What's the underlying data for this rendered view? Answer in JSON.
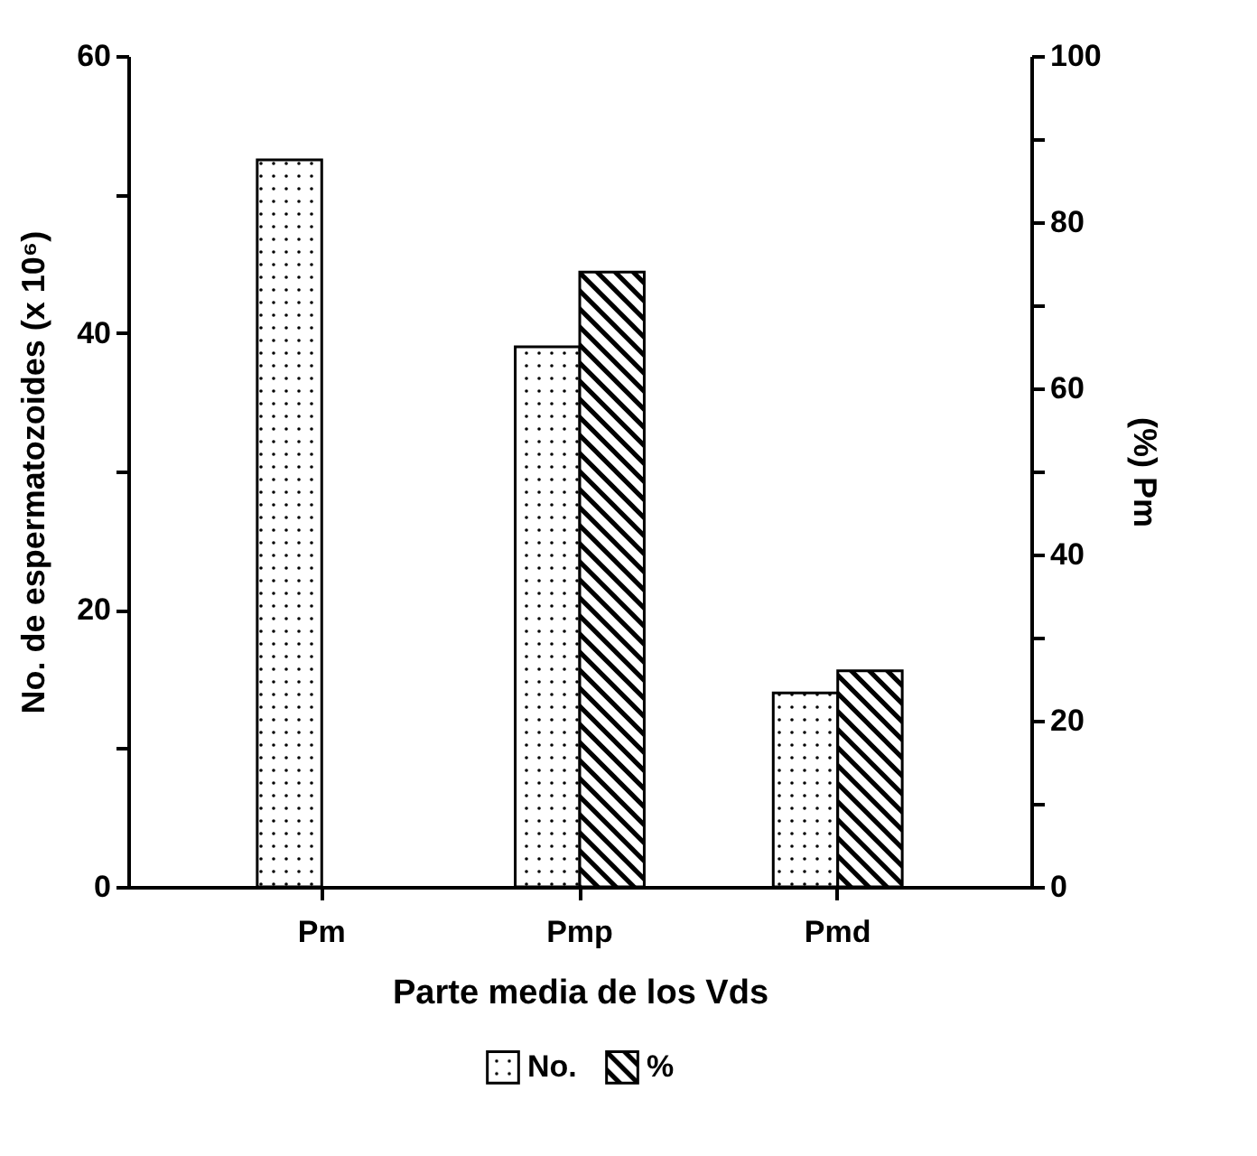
{
  "chart_data": {
    "type": "bar",
    "xlabel": "Parte media de los Vds",
    "ylabel": "No. de espermatozoides (x 10⁶)",
    "y2label": "(%) Pm",
    "categories": [
      "Pm",
      "Pmp",
      "Pmd"
    ],
    "series": [
      {
        "name": "No.",
        "color": "#000000",
        "values": [
          52.5,
          39,
          14
        ]
      },
      {
        "name": "%",
        "color": "#000000",
        "values": [
          null,
          74,
          26
        ],
        "axis": "y2"
      }
    ],
    "ylim": [
      0,
      60
    ],
    "yticks": [
      0,
      {
        "value": 10,
        "label": null
      },
      20,
      {
        "value": 30,
        "label": null
      },
      40,
      {
        "value": 50,
        "label": null
      },
      60
    ],
    "y2lim": [
      0,
      100
    ],
    "y2ticks": [
      0,
      {
        "value": 10,
        "label": null
      },
      20,
      {
        "value": 30,
        "label": null
      },
      40,
      {
        "value": 50,
        "label": null
      },
      60,
      {
        "value": 70,
        "label": null
      },
      80,
      {
        "value": 90,
        "label": null
      },
      100
    ],
    "legend": "bottom",
    "grid": false
  }
}
